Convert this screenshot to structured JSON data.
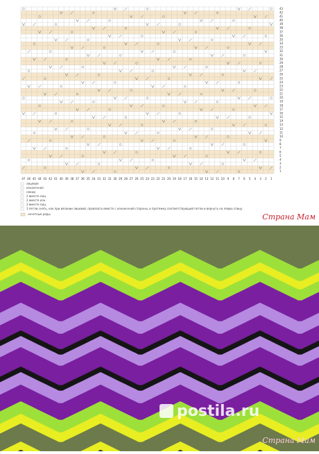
{
  "chart": {
    "row_numbers": [
      43,
      42,
      41,
      40,
      39,
      38,
      37,
      36,
      35,
      34,
      33,
      32,
      31,
      30,
      29,
      28,
      27,
      26,
      25,
      24,
      23,
      22,
      21,
      20,
      19,
      18,
      17,
      16,
      15,
      14,
      13,
      12,
      11,
      10,
      9,
      8,
      7,
      6,
      5,
      4,
      3,
      2,
      1
    ],
    "column_numbers": [
      47,
      46,
      45,
      44,
      43,
      42,
      41,
      40,
      39,
      38,
      37,
      36,
      35,
      34,
      33,
      32,
      31,
      30,
      29,
      28,
      27,
      26,
      25,
      24,
      23,
      22,
      21,
      20,
      19,
      18,
      17,
      16,
      15,
      14,
      13,
      12,
      11,
      10,
      9,
      8,
      7,
      6,
      5,
      4,
      3,
      2,
      1
    ]
  },
  "legend": [
    {
      "label": "лицевая"
    },
    {
      "label": "изнаночная"
    },
    {
      "label": "накид"
    },
    {
      "label": "2 вместе лиц."
    },
    {
      "label": "2 вместе изн."
    },
    {
      "label": "3 вместе лиц."
    },
    {
      "label": "3 петли снять, как при вязании лицевой, провязать вместе с изнаночной стороны, в протяжку соответствующей петли и вернуть на левую спицу"
    }
  ],
  "note": "нечетные ряды",
  "watermarks": {
    "chart": "Страна Мам",
    "photo": "Страна Мам",
    "site": "postila.ru"
  }
}
